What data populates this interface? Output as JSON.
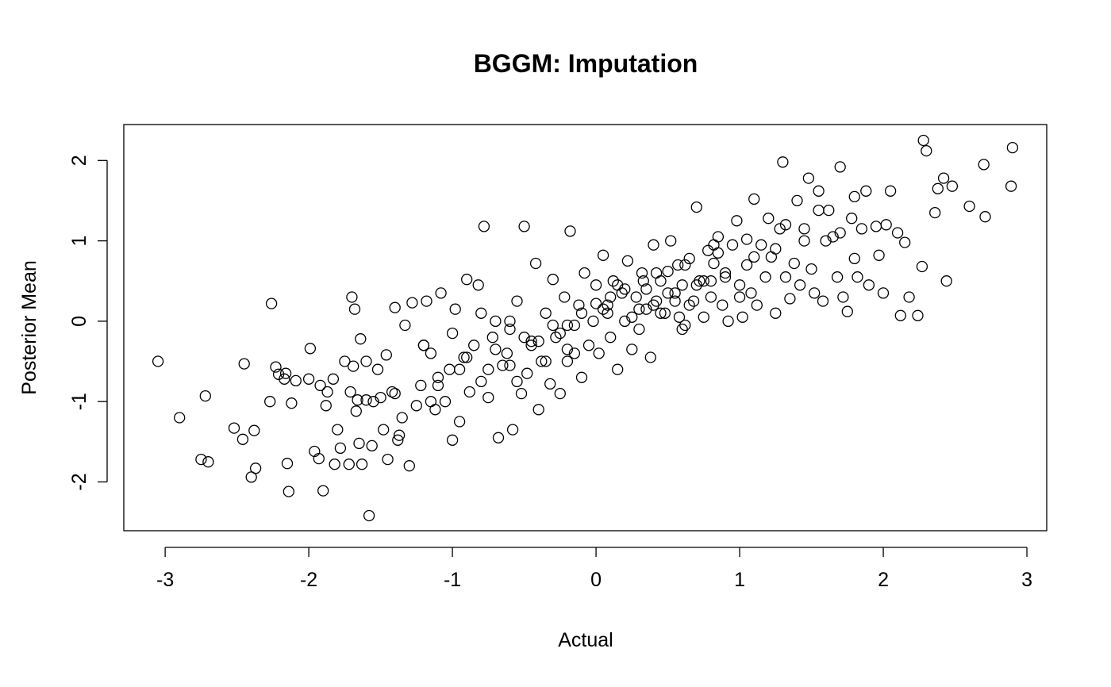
{
  "chart_data": {
    "type": "scatter",
    "title": "BGGM: Imputation",
    "xlabel": "Actual",
    "ylabel": "Posterior Mean",
    "xlim": [
      -3.05,
      2.9
    ],
    "ylim": [
      -2.42,
      2.26
    ],
    "x_ticks": [
      -3,
      -2,
      -1,
      0,
      1,
      2,
      3
    ],
    "y_ticks": [
      -2,
      -1,
      0,
      1,
      2
    ],
    "marker": "open-circle",
    "grid": false,
    "legend": "none",
    "x": [
      -3.05,
      -2.9,
      -2.75,
      -2.72,
      -2.7,
      -2.52,
      -2.46,
      -2.45,
      -2.4,
      -2.38,
      -2.37,
      -2.27,
      -2.26,
      -2.23,
      -2.21,
      -2.17,
      -2.16,
      -2.15,
      -2.14,
      -2.12,
      -2.09,
      -2.0,
      -1.99,
      -1.96,
      -1.93,
      -1.92,
      -1.9,
      -1.88,
      -1.87,
      -1.83,
      -1.82,
      -1.8,
      -1.78,
      -1.75,
      -1.72,
      -1.71,
      -1.7,
      -1.69,
      -1.68,
      -1.67,
      -1.66,
      -1.65,
      -1.64,
      -1.63,
      -1.6,
      -1.58,
      -1.56,
      -1.55,
      -1.52,
      -1.5,
      -1.48,
      -1.46,
      -1.45,
      -1.42,
      -1.4,
      -1.38,
      -1.37,
      -1.35,
      -1.33,
      -1.3,
      -1.28,
      -1.25,
      -1.22,
      -1.2,
      -1.18,
      -1.15,
      -1.12,
      -1.1,
      -1.08,
      -1.05,
      -1.02,
      -1.0,
      -0.98,
      -0.95,
      -0.92,
      -0.9,
      -0.88,
      -0.85,
      -0.82,
      -0.8,
      -0.78,
      -0.75,
      -0.72,
      -0.7,
      -0.68,
      -0.65,
      -0.62,
      -0.6,
      -0.58,
      -0.55,
      -0.52,
      -0.5,
      -0.48,
      -0.45,
      -0.42,
      -0.4,
      -0.38,
      -0.35,
      -0.32,
      -0.3,
      -0.28,
      -0.25,
      -0.22,
      -0.2,
      -0.18,
      -0.15,
      -0.12,
      -0.1,
      -0.08,
      -0.05,
      -0.02,
      0.0,
      0.02,
      0.05,
      0.08,
      0.1,
      0.12,
      0.15,
      0.18,
      0.2,
      0.22,
      0.25,
      0.28,
      0.3,
      0.32,
      0.35,
      0.38,
      0.4,
      0.42,
      0.45,
      0.48,
      0.5,
      0.52,
      0.55,
      0.58,
      0.6,
      0.62,
      0.65,
      0.68,
      0.7,
      0.72,
      0.75,
      0.78,
      0.8,
      0.82,
      0.85,
      0.88,
      0.9,
      0.92,
      0.95,
      0.98,
      1.0,
      1.02,
      1.05,
      1.08,
      1.1,
      1.12,
      1.15,
      1.18,
      1.2,
      1.22,
      1.25,
      1.28,
      1.3,
      1.32,
      1.35,
      1.38,
      1.4,
      1.42,
      1.45,
      1.48,
      1.5,
      1.52,
      1.55,
      1.58,
      1.6,
      1.62,
      1.65,
      1.68,
      1.7,
      1.72,
      1.75,
      1.78,
      1.8,
      1.82,
      1.85,
      1.88,
      1.9,
      1.95,
      1.97,
      2.0,
      2.02,
      2.05,
      2.1,
      2.12,
      2.15,
      2.18,
      2.24,
      2.27,
      2.28,
      2.3,
      2.36,
      2.38,
      2.42,
      2.44,
      2.48,
      2.6,
      2.7,
      2.71,
      2.89,
      2.9,
      -1.2,
      -1.0,
      -0.8,
      -0.6,
      -0.4,
      -0.2,
      0.0,
      0.2,
      0.4,
      0.6,
      0.8,
      1.0,
      -0.9,
      -0.7,
      -0.5,
      -0.3,
      -0.1,
      0.1,
      0.3,
      0.5,
      0.7,
      0.9,
      -1.1,
      -0.6,
      -0.2,
      0.25,
      0.55,
      0.75,
      1.1,
      1.25,
      1.45,
      1.7,
      -0.35,
      -0.15,
      0.05,
      0.35,
      0.45,
      0.65,
      -0.55,
      -0.75,
      -0.95,
      -1.15,
      0.15,
      0.42,
      0.62,
      0.85,
      1.05,
      1.32,
      1.55,
      1.8,
      -1.4,
      -1.6,
      -0.45,
      -0.25,
      0.08,
      0.33,
      0.57,
      0.82
    ],
    "y": [
      -0.5,
      -1.2,
      -1.72,
      -0.93,
      -1.75,
      -1.33,
      -1.47,
      -0.53,
      -1.94,
      -1.36,
      -1.83,
      -1.0,
      0.22,
      -0.57,
      -0.66,
      -0.72,
      -0.65,
      -1.77,
      -2.12,
      -1.02,
      -0.74,
      -0.72,
      -0.34,
      -1.62,
      -1.71,
      -0.8,
      -2.11,
      -1.05,
      -0.88,
      -0.72,
      -1.78,
      -1.35,
      -1.58,
      -0.5,
      -1.78,
      -0.88,
      0.3,
      -0.56,
      0.15,
      -1.12,
      -0.98,
      -1.52,
      -0.22,
      -1.78,
      -0.5,
      -2.42,
      -1.55,
      -1.0,
      -0.6,
      -0.95,
      -1.35,
      -0.42,
      -1.72,
      -0.88,
      0.17,
      -1.48,
      -1.42,
      -1.2,
      -0.05,
      -1.8,
      0.23,
      -1.05,
      -0.8,
      -0.3,
      0.25,
      -0.4,
      -1.1,
      -0.7,
      0.35,
      -1.0,
      -0.6,
      -1.48,
      0.15,
      -1.25,
      -0.45,
      0.52,
      -0.88,
      -0.3,
      0.45,
      -0.75,
      1.18,
      -0.6,
      -0.2,
      0.0,
      -1.45,
      -0.55,
      -0.4,
      -0.1,
      -1.35,
      0.25,
      -0.9,
      1.18,
      -0.65,
      -0.3,
      0.72,
      -1.1,
      -0.5,
      0.1,
      -0.78,
      0.52,
      -0.2,
      -0.9,
      0.3,
      -0.5,
      1.12,
      -0.05,
      0.2,
      -0.7,
      0.6,
      -0.3,
      0.0,
      0.45,
      -0.4,
      0.82,
      0.1,
      -0.2,
      0.5,
      -0.6,
      0.35,
      0.0,
      0.75,
      -0.35,
      0.3,
      -0.1,
      0.6,
      0.15,
      -0.45,
      0.95,
      0.25,
      0.5,
      0.1,
      0.62,
      1.0,
      0.35,
      0.05,
      0.45,
      -0.05,
      0.78,
      0.25,
      1.42,
      0.5,
      0.05,
      0.88,
      0.3,
      0.72,
      1.05,
      0.2,
      0.55,
      0.0,
      0.95,
      1.25,
      0.45,
      0.05,
      0.7,
      0.35,
      1.52,
      0.2,
      0.95,
      0.55,
      1.28,
      0.8,
      0.1,
      1.15,
      1.98,
      0.55,
      0.28,
      0.72,
      1.5,
      0.45,
      1.15,
      1.78,
      0.65,
      0.35,
      1.62,
      0.25,
      1.0,
      1.38,
      1.05,
      0.55,
      1.92,
      0.3,
      0.12,
      1.28,
      0.78,
      0.55,
      1.15,
      1.62,
      0.45,
      1.18,
      0.82,
      0.35,
      1.2,
      1.62,
      1.1,
      0.07,
      0.98,
      0.3,
      0.07,
      0.68,
      2.25,
      2.12,
      1.35,
      1.65,
      1.78,
      0.5,
      1.68,
      1.43,
      1.95,
      1.3,
      1.68,
      2.16,
      -0.3,
      -0.15,
      0.1,
      0.0,
      -0.25,
      -0.05,
      0.22,
      0.4,
      0.2,
      -0.1,
      0.5,
      0.3,
      -0.45,
      -0.35,
      -0.2,
      -0.05,
      0.1,
      0.3,
      0.15,
      0.35,
      0.45,
      0.6,
      -0.8,
      -0.55,
      -0.35,
      0.05,
      0.25,
      0.5,
      0.8,
      0.9,
      1.0,
      1.1,
      -0.5,
      -0.4,
      0.15,
      0.4,
      0.1,
      0.2,
      -0.75,
      -0.95,
      -0.6,
      -1.0,
      0.45,
      0.6,
      0.7,
      0.85,
      1.02,
      1.2,
      1.38,
      1.55,
      -0.9,
      -0.98,
      -0.25,
      -0.15,
      0.2,
      0.5,
      0.7,
      0.95
    ]
  }
}
